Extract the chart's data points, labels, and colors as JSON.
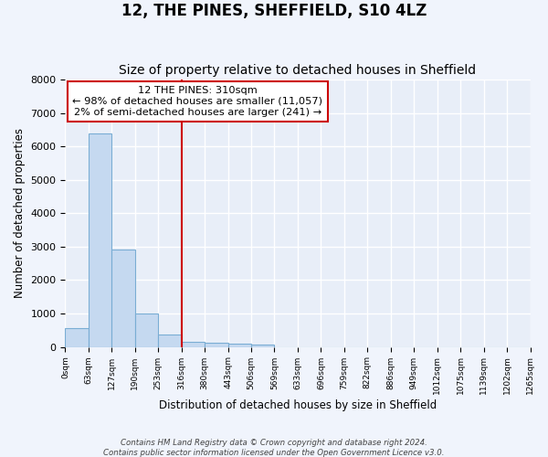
{
  "title": "12, THE PINES, SHEFFIELD, S10 4LZ",
  "subtitle": "Size of property relative to detached houses in Sheffield",
  "xlabel": "Distribution of detached houses by size in Sheffield",
  "ylabel": "Number of detached properties",
  "bin_labels": [
    "0sqm",
    "63sqm",
    "127sqm",
    "190sqm",
    "253sqm",
    "316sqm",
    "380sqm",
    "443sqm",
    "506sqm",
    "569sqm",
    "633sqm",
    "696sqm",
    "759sqm",
    "822sqm",
    "886sqm",
    "949sqm",
    "1012sqm",
    "1075sqm",
    "1139sqm",
    "1202sqm",
    "1265sqm"
  ],
  "bar_heights": [
    560,
    6400,
    2920,
    990,
    370,
    150,
    120,
    90,
    80,
    0,
    0,
    0,
    0,
    0,
    0,
    0,
    0,
    0,
    0,
    0
  ],
  "bar_color": "#c5d9f0",
  "bar_edge_color": "#7aadd4",
  "background_color": "#e8eef8",
  "grid_color": "#ffffff",
  "fig_background": "#f0f4fc",
  "property_line_x": 316,
  "property_line_color": "#cc0000",
  "ylim": [
    0,
    8000
  ],
  "annotation_text_line1": "12 THE PINES: 310sqm",
  "annotation_text_line2": "← 98% of detached houses are smaller (11,057)",
  "annotation_text_line3": "2% of semi-detached houses are larger (241) →",
  "annotation_box_color": "#cc0000",
  "footer_line1": "Contains HM Land Registry data © Crown copyright and database right 2024.",
  "footer_line2": "Contains public sector information licensed under the Open Government Licence v3.0.",
  "title_fontsize": 12,
  "subtitle_fontsize": 10,
  "bin_width": 63
}
